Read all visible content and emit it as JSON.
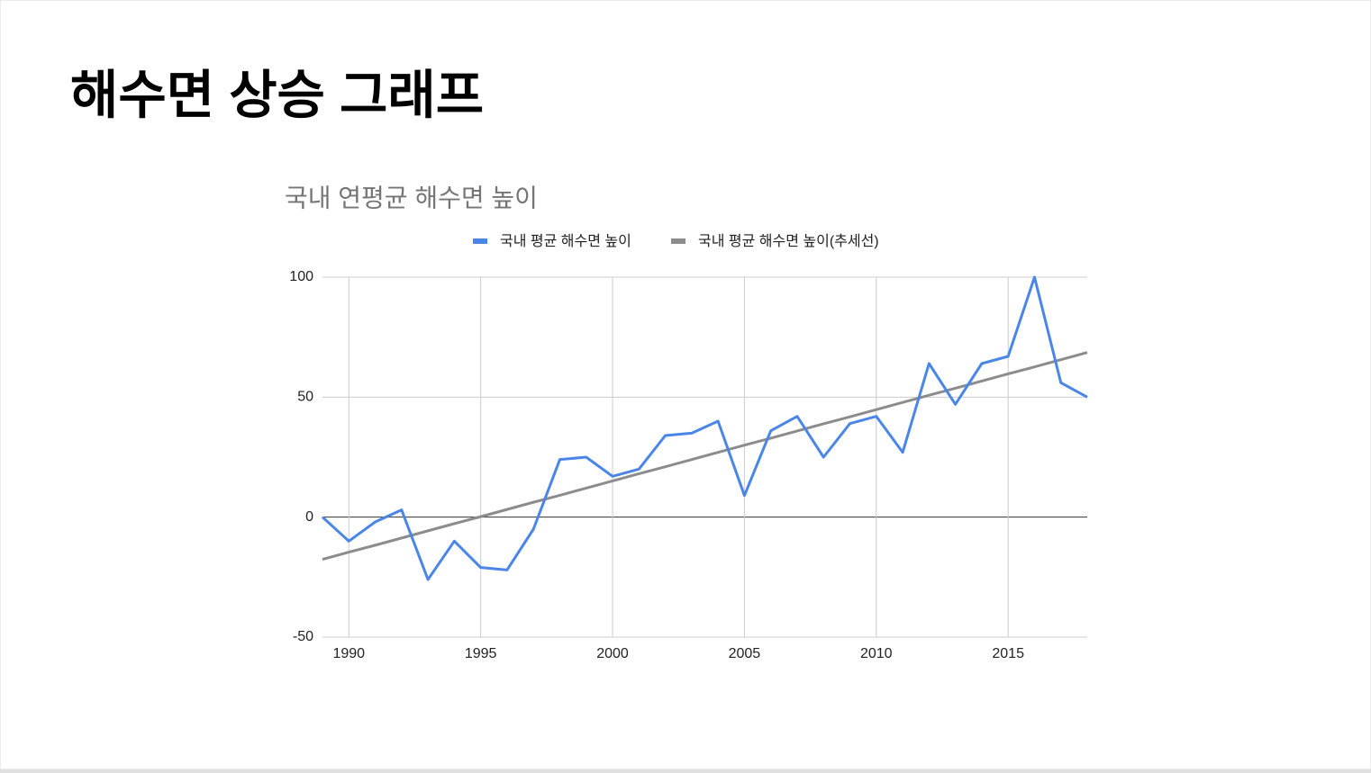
{
  "heading": "해수면 상승 그래프",
  "chart_data": {
    "type": "line",
    "title": "국내 연평균 해수면 높이",
    "x": [
      1989,
      1990,
      1991,
      1992,
      1993,
      1994,
      1995,
      1996,
      1997,
      1998,
      1999,
      2000,
      2001,
      2002,
      2003,
      2004,
      2005,
      2006,
      2007,
      2008,
      2009,
      2010,
      2011,
      2012,
      2013,
      2014,
      2015,
      2016,
      2017,
      2018
    ],
    "series": [
      {
        "name": "국내 평균 해수면 높이",
        "color": "#4a86e8",
        "values": [
          0,
          -10,
          -2,
          3,
          -26,
          -10,
          -21,
          -22,
          -5,
          24,
          25,
          17,
          20,
          34,
          35,
          40,
          9,
          36,
          42,
          25,
          39,
          42,
          27,
          64,
          47,
          64,
          67,
          100,
          56,
          50
        ]
      },
      {
        "name": "국내 평균 해수면 높이(추세선)",
        "color": "#8c8c8c",
        "values": [
          -17.6,
          -14.6,
          -11.7,
          -8.7,
          -5.7,
          -2.7,
          0.2,
          3.2,
          6.2,
          9.1,
          12.1,
          15.1,
          18.1,
          21.0,
          24.0,
          27.0,
          30.0,
          32.9,
          35.9,
          38.9,
          41.8,
          44.8,
          47.8,
          50.8,
          53.7,
          56.7,
          59.7,
          62.6,
          65.6,
          68.6
        ]
      }
    ],
    "xlim": [
      1989,
      2018
    ],
    "xticks": [
      1990,
      1995,
      2000,
      2005,
      2010,
      2015
    ],
    "ylim": [
      -50,
      100
    ],
    "yticks": [
      -50,
      0,
      50,
      100
    ],
    "grid": true,
    "legend": "top"
  }
}
